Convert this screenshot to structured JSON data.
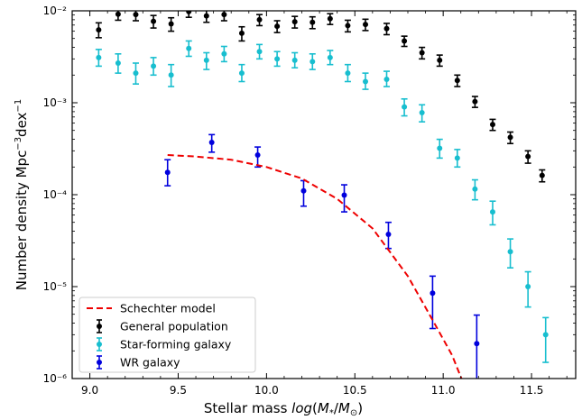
{
  "chart_data": {
    "type": "scatter",
    "title": "",
    "xlabel": "Stellar mass log(M*/M⊙)",
    "ylabel": "Number density Mpc⁻³dex⁻¹",
    "xlim": [
      8.9,
      11.75
    ],
    "ylim": [
      1e-06,
      0.01
    ],
    "yscale": "log",
    "x_ticks": [
      9.0,
      9.5,
      10.0,
      10.5,
      11.0,
      11.5
    ],
    "x_tick_labels": [
      "9.0",
      "9.5",
      "10.0",
      "10.5",
      "11.0",
      "11.5"
    ],
    "y_ticks": [
      1e-06,
      1e-05,
      0.0001,
      0.001,
      0.01
    ],
    "y_tick_labels": [
      "10⁻⁶",
      "10⁻⁵",
      "10⁻⁴",
      "10⁻³",
      "10⁻²"
    ],
    "grid": false,
    "legend_position": "lower-left",
    "series": [
      {
        "name": "General population",
        "kind": "errorbar",
        "color": "#000000",
        "x": [
          9.05,
          9.16,
          9.26,
          9.36,
          9.46,
          9.56,
          9.66,
          9.76,
          9.86,
          9.96,
          10.06,
          10.16,
          10.26,
          10.36,
          10.46,
          10.56,
          10.68,
          10.78,
          10.88,
          10.98,
          11.08,
          11.18,
          11.28,
          11.38,
          11.48,
          11.56
        ],
        "y": [
          0.0062,
          0.0092,
          0.0091,
          0.0077,
          0.0072,
          0.0098,
          0.0088,
          0.0091,
          0.0057,
          0.008,
          0.0068,
          0.0076,
          0.0075,
          0.0082,
          0.0069,
          0.0071,
          0.0064,
          0.0047,
          0.0035,
          0.0029,
          0.00175,
          0.00103,
          0.00058,
          0.00042,
          0.00026,
          0.000162
        ],
        "y_low": [
          0.0051,
          0.0079,
          0.0078,
          0.0065,
          0.006,
          0.0085,
          0.0075,
          0.0078,
          0.0047,
          0.0069,
          0.0058,
          0.0065,
          0.0064,
          0.0071,
          0.0059,
          0.0061,
          0.0055,
          0.0041,
          0.003,
          0.0025,
          0.0015,
          0.00089,
          0.0005,
          0.00036,
          0.00022,
          0.000138
        ],
        "y_high": [
          0.0074,
          0.0105,
          0.0104,
          0.0089,
          0.0084,
          0.0111,
          0.0101,
          0.0104,
          0.0067,
          0.0091,
          0.0078,
          0.0087,
          0.0086,
          0.0093,
          0.0079,
          0.0081,
          0.0073,
          0.0053,
          0.004,
          0.0033,
          0.002,
          0.00117,
          0.00066,
          0.00048,
          0.0003,
          0.000186
        ]
      },
      {
        "name": "Star-forming galaxy",
        "kind": "errorbar",
        "color": "#17becf",
        "x": [
          9.05,
          9.16,
          9.26,
          9.36,
          9.46,
          9.56,
          9.66,
          9.76,
          9.86,
          9.96,
          10.06,
          10.16,
          10.26,
          10.36,
          10.46,
          10.56,
          10.68,
          10.78,
          10.88,
          10.98,
          11.08,
          11.18,
          11.28,
          11.38,
          11.48,
          11.58
        ],
        "y": [
          0.0031,
          0.0027,
          0.0021,
          0.0025,
          0.002,
          0.0039,
          0.0029,
          0.0034,
          0.0021,
          0.0036,
          0.003,
          0.0029,
          0.0028,
          0.0031,
          0.0021,
          0.0017,
          0.0018,
          0.0009,
          0.00078,
          0.00032,
          0.00025,
          0.000115,
          6.5e-05,
          2.4e-05,
          1e-05,
          3e-06
        ],
        "y_low": [
          0.0025,
          0.0021,
          0.0016,
          0.002,
          0.0015,
          0.0032,
          0.0023,
          0.0028,
          0.0017,
          0.003,
          0.0025,
          0.0024,
          0.0023,
          0.0026,
          0.0017,
          0.0014,
          0.0015,
          0.00072,
          0.00062,
          0.00025,
          0.0002,
          8.8e-05,
          4.7e-05,
          1.6e-05,
          6e-06,
          1.5e-06
        ],
        "y_high": [
          0.0038,
          0.0034,
          0.0027,
          0.0031,
          0.0026,
          0.0047,
          0.0035,
          0.0041,
          0.0026,
          0.0043,
          0.0036,
          0.0035,
          0.0034,
          0.0037,
          0.0026,
          0.0021,
          0.0022,
          0.0011,
          0.00095,
          0.0004,
          0.00031,
          0.000145,
          8.5e-05,
          3.3e-05,
          1.45e-05,
          4.6e-06
        ]
      },
      {
        "name": "WR galaxy",
        "kind": "errorbar",
        "color": "#0000dd",
        "x": [
          9.44,
          9.69,
          9.95,
          10.21,
          10.44,
          10.69,
          10.94,
          11.19
        ],
        "y": [
          0.000175,
          0.00037,
          0.00027,
          0.00011,
          9.9e-05,
          3.7e-05,
          8.5e-06,
          2.4e-06
        ],
        "y_low": [
          0.000125,
          0.00029,
          0.0002,
          7.5e-05,
          6.5e-05,
          2.6e-05,
          3.5e-06,
          7e-07
        ],
        "y_high": [
          0.00024,
          0.00045,
          0.00033,
          0.000142,
          0.000128,
          5e-05,
          1.3e-05,
          4.9e-06
        ]
      },
      {
        "name": "Schechter model",
        "kind": "line",
        "style": "dashed",
        "color": "#ee0000",
        "x": [
          9.44,
          9.6,
          9.8,
          10.0,
          10.2,
          10.4,
          10.6,
          10.8,
          10.95,
          11.05,
          11.15
        ],
        "y": [
          0.00027,
          0.00026,
          0.00024,
          0.0002,
          0.00015,
          9e-05,
          4.3e-05,
          1.3e-05,
          4e-06,
          1.8e-06,
          6e-07
        ]
      }
    ]
  }
}
